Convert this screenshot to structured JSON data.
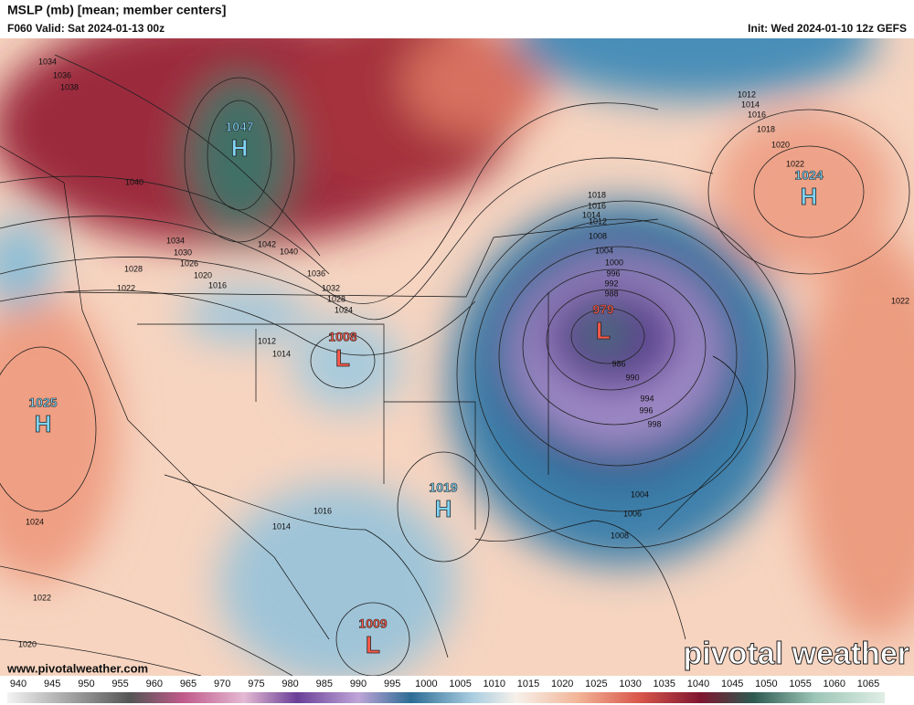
{
  "header": {
    "title": "MSLP (mb) [mean; member centers]",
    "valid": "F060 Valid: Sat 2024-01-13 00z",
    "init": "Init: Wed 2024-01-10 12z GEFS"
  },
  "centers": [
    {
      "letter": "H",
      "value": "1047"
    },
    {
      "letter": "H",
      "value": "1024"
    },
    {
      "letter": "H",
      "value": "1025"
    },
    {
      "letter": "L",
      "value": "1008"
    },
    {
      "letter": "L",
      "value": "979"
    },
    {
      "letter": "H",
      "value": "1019"
    },
    {
      "letter": "L",
      "value": "1009"
    }
  ],
  "isobar_labels": [
    "1034",
    "1036",
    "1038",
    "1040",
    "1034",
    "1030",
    "1026",
    "1028",
    "1022",
    "1020",
    "1016",
    "1042",
    "1040",
    "1036",
    "1032",
    "1028",
    "1024",
    "1012",
    "1014",
    "1018",
    "1016",
    "1014",
    "1012",
    "1008",
    "1004",
    "1000",
    "996",
    "992",
    "988",
    "986",
    "990",
    "994",
    "996",
    "998",
    "1004",
    "1006",
    "1008",
    "1012",
    "1014",
    "1016",
    "1018",
    "1020",
    "1022",
    "1022",
    "1016",
    "1014",
    "1024",
    "1022",
    "1020"
  ],
  "colorbar": {
    "ticks": [
      940,
      945,
      950,
      955,
      960,
      965,
      970,
      975,
      980,
      985,
      990,
      995,
      1000,
      1005,
      1010,
      1015,
      1020,
      1025,
      1030,
      1035,
      1040,
      1045,
      1050,
      1055,
      1060,
      1065
    ]
  },
  "footer": {
    "website": "www.pivotalweather.com",
    "logo": "pivotal weather"
  }
}
